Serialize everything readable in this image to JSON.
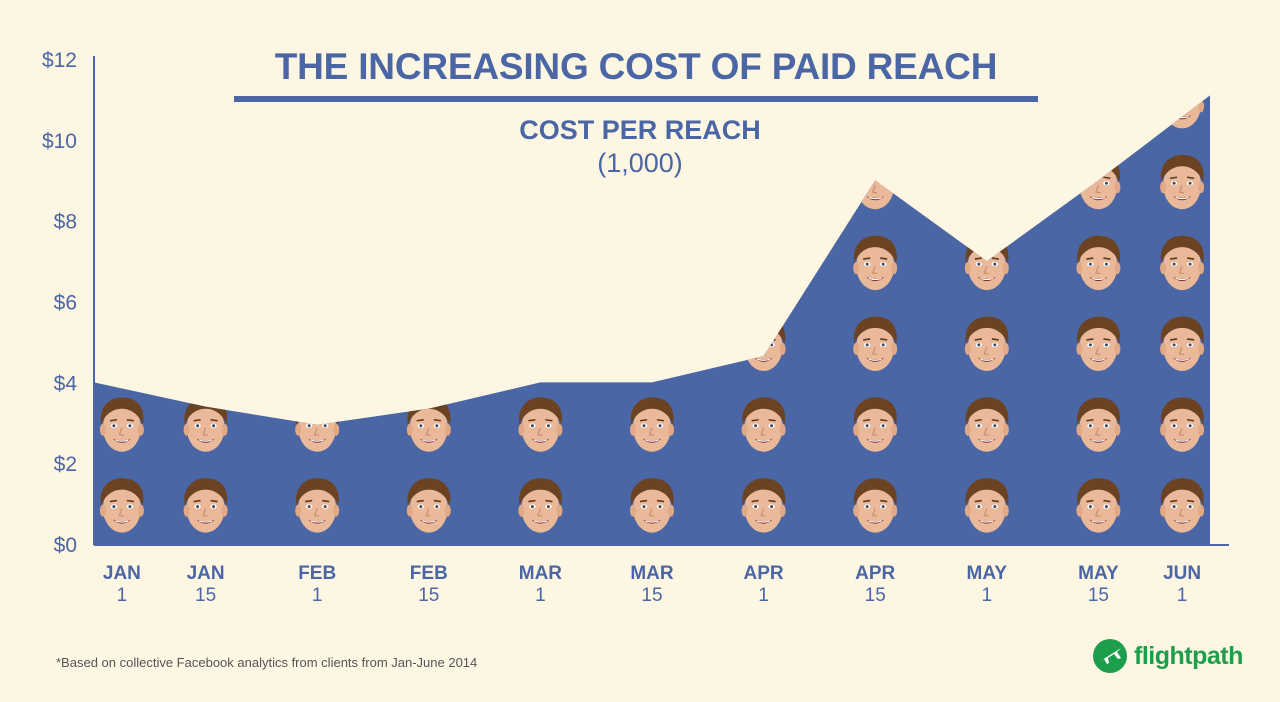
{
  "header": {
    "title": "THE INCREASING COST OF PAID REACH",
    "subtitle": "COST PER REACH",
    "subtitle_unit": "(1,000)"
  },
  "footnote": "*Based on collective Facebook analytics from clients from Jan-June 2014",
  "logo": {
    "text": "flightpath",
    "icon": "airplane-icon",
    "color": "#1d9e4b"
  },
  "chart_data": {
    "type": "area",
    "title": "THE INCREASING COST OF PAID REACH",
    "subtitle": "COST PER REACH (1,000)",
    "categories": [
      {
        "month": "JAN",
        "day": "1"
      },
      {
        "month": "JAN",
        "day": "15"
      },
      {
        "month": "FEB",
        "day": "1"
      },
      {
        "month": "FEB",
        "day": "15"
      },
      {
        "month": "MAR",
        "day": "1"
      },
      {
        "month": "MAR",
        "day": "15"
      },
      {
        "month": "APR",
        "day": "1"
      },
      {
        "month": "APR",
        "day": "15"
      },
      {
        "month": "MAY",
        "day": "1"
      },
      {
        "month": "MAY",
        "day": "15"
      },
      {
        "month": "JUN",
        "day": "1"
      }
    ],
    "values": [
      4.0,
      3.4,
      2.95,
      3.35,
      4.0,
      4.0,
      4.65,
      9.0,
      7.0,
      9.0,
      11.1
    ],
    "yticks": [
      "$0",
      "$2",
      "$4",
      "$6",
      "$8",
      "$10",
      "$12"
    ],
    "ylim": [
      0,
      12
    ],
    "ystep": 2,
    "pictogram": "face-icon",
    "pictogram_unit": 2,
    "colors": {
      "area": "#4a66a4",
      "text": "#4a66a4",
      "axis": "#4a66a4",
      "background": "#fdf6e3"
    }
  }
}
